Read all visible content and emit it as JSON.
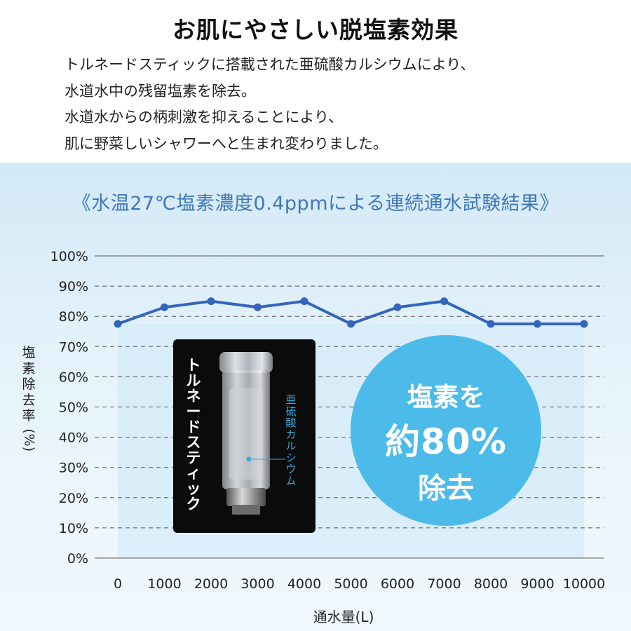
{
  "header": {
    "title": "お肌にやさしい脱塩素効果",
    "lines": [
      "トルネードスティックに搭載された亜硫酸カルシウムにより、",
      "水道水中の残留塩素を除去。",
      "水道水からの柄刺激を抑えることにより、",
      "肌に野菜しいシャワーへと生まれ変わりました。"
    ]
  },
  "chart_data": {
    "type": "line",
    "title": "《水温27℃塩素濃度0.4ppmによる連続通水試験結果》",
    "xlabel": "通水量(L)",
    "ylabel": "塩素除去率(%)",
    "x": [
      0,
      1000,
      2000,
      3000,
      4000,
      5000,
      6000,
      7000,
      8000,
      9000,
      10000
    ],
    "x_tick_labels": [
      "0",
      "1000",
      "2000",
      "3000",
      "4000",
      "5000",
      "6000",
      "7000",
      "8000",
      "9000",
      "10000"
    ],
    "y_tick_labels": [
      "0%",
      "10%",
      "20%",
      "30%",
      "40%",
      "50%",
      "60%",
      "70%",
      "80%",
      "90%",
      "100%"
    ],
    "series": [
      {
        "values": [
          77.5,
          83,
          85,
          83,
          85,
          77.5,
          83,
          85,
          77.5,
          77.5,
          77.5
        ]
      }
    ],
    "ylim": [
      0,
      100
    ],
    "xlim": [
      0,
      10000
    ],
    "grid": true,
    "line_color": "#3366bb"
  },
  "product": {
    "name_chars": [
      "ト",
      "ル",
      "ネ",
      "ー",
      "ド",
      "ス",
      "テ",
      "ィ",
      "ッ",
      "ク"
    ],
    "ingredient_chars": [
      "亜",
      "硫",
      "酸",
      "カ",
      "ル",
      "シ",
      "ウ",
      "ム"
    ]
  },
  "badge": {
    "line1": "塩素を",
    "line2": "約80%",
    "line3": "除去",
    "color": "#4cbbe9"
  }
}
